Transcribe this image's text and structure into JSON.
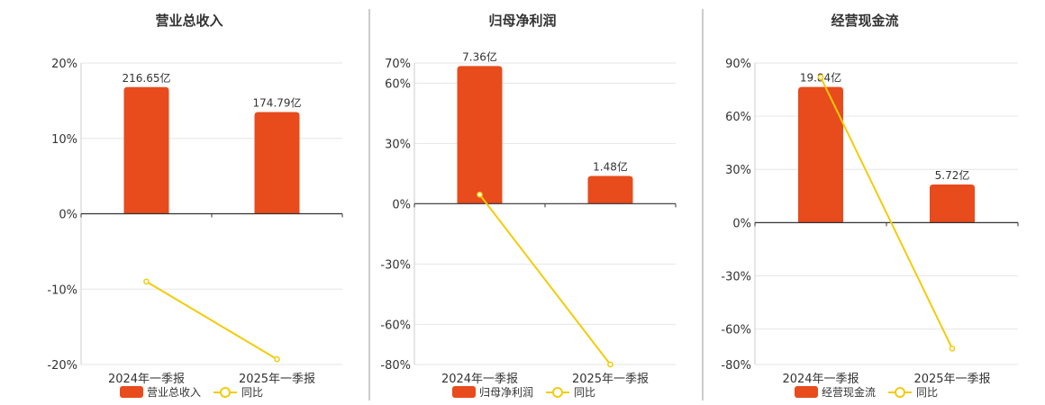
{
  "colors": {
    "bar": "#E84B1C",
    "line": "#F2CC0C",
    "grid": "#E6E6E6",
    "axis": "#333333",
    "divider": "#999999"
  },
  "chart_data": [
    {
      "type": "bar",
      "title": "营业总收入",
      "categories": [
        "2024年一季报",
        "2025年一季报"
      ],
      "series": [
        {
          "name": "营业总收入",
          "type": "bar",
          "values": [
            16.8,
            13.5
          ],
          "data_labels": [
            "216.65亿",
            "174.79亿"
          ]
        },
        {
          "name": "同比",
          "type": "line",
          "values": [
            -9.0,
            -19.3
          ]
        }
      ],
      "yticks": [
        -20,
        -10,
        0,
        10,
        20
      ],
      "ytick_labels": [
        "-20%",
        "-10%",
        "0%",
        "10%",
        "20%"
      ],
      "ylim": [
        -20,
        20
      ],
      "grid": true,
      "legend": "bottom"
    },
    {
      "type": "bar",
      "title": "归母净利润",
      "categories": [
        "2024年一季报",
        "2025年一季报"
      ],
      "series": [
        {
          "name": "归母净利润",
          "type": "bar",
          "values": [
            68.5,
            13.8
          ],
          "data_labels": [
            "7.36亿",
            "1.48亿"
          ]
        },
        {
          "name": "同比",
          "type": "line",
          "values": [
            4.5,
            -80.0
          ]
        }
      ],
      "yticks": [
        -80,
        -60,
        -30,
        0,
        30,
        60,
        70
      ],
      "ytick_labels": [
        "-80%",
        "-60%",
        "-30%",
        "0%",
        "30%",
        "60%",
        "70%"
      ],
      "ylim": [
        -80,
        70
      ],
      "grid": true,
      "legend": "bottom"
    },
    {
      "type": "bar",
      "title": "经营现金流",
      "categories": [
        "2024年一季报",
        "2025年一季报"
      ],
      "series": [
        {
          "name": "经营现金流",
          "type": "bar",
          "values": [
            76.5,
            21.5
          ],
          "data_labels": [
            "19.84亿",
            "5.72亿"
          ]
        },
        {
          "name": "同比",
          "type": "line",
          "values": [
            82.0,
            -71.0
          ]
        }
      ],
      "yticks": [
        -80,
        -60,
        -30,
        0,
        30,
        60,
        90
      ],
      "ytick_labels": [
        "-80%",
        "-60%",
        "-30%",
        "0%",
        "30%",
        "60%",
        "90%"
      ],
      "ylim": [
        -80,
        90
      ],
      "grid": true,
      "legend": "bottom"
    }
  ]
}
